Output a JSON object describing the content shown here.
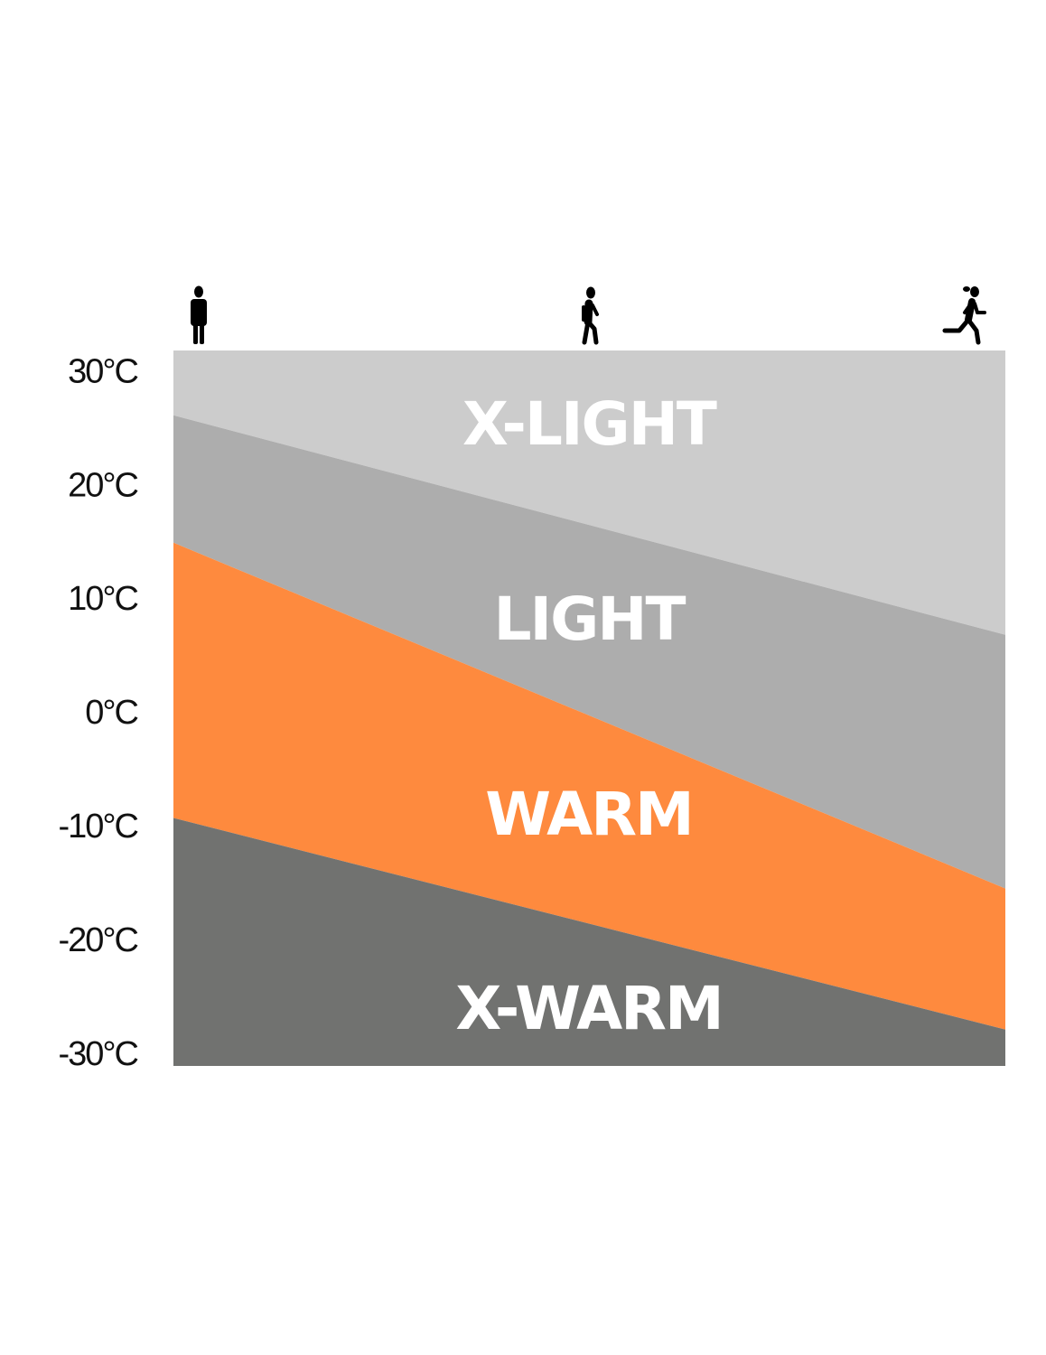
{
  "chart_data": {
    "type": "area",
    "x_categories_icons": [
      "standing-person-icon",
      "walking-person-icon",
      "running-person-icon"
    ],
    "y_ticks": [
      "30°C",
      "20°C",
      "10°C",
      "0°C",
      "-10°C",
      "-20°C",
      "-30°C"
    ],
    "y_tick_values": [
      30,
      20,
      10,
      0,
      -10,
      -20,
      -30
    ],
    "ylim": [
      -31.2,
      31.7
    ],
    "unit": "°C",
    "grid": false,
    "boundaries": [
      {
        "between": [
          "X-LIGHT",
          "LIGHT"
        ],
        "left": 26.0,
        "right": 6.7
      },
      {
        "between": [
          "LIGHT",
          "WARM"
        ],
        "left": 14.8,
        "right": -15.6
      },
      {
        "between": [
          "WARM",
          "X-WARM"
        ],
        "left": -9.4,
        "right": -28.0
      }
    ],
    "series": [
      {
        "name": "X-LIGHT",
        "color": "#cccccc"
      },
      {
        "name": "LIGHT",
        "color": "#adadad"
      },
      {
        "name": "WARM",
        "color": "#fe8a3e"
      },
      {
        "name": "X-WARM",
        "color": "#717270"
      }
    ]
  }
}
